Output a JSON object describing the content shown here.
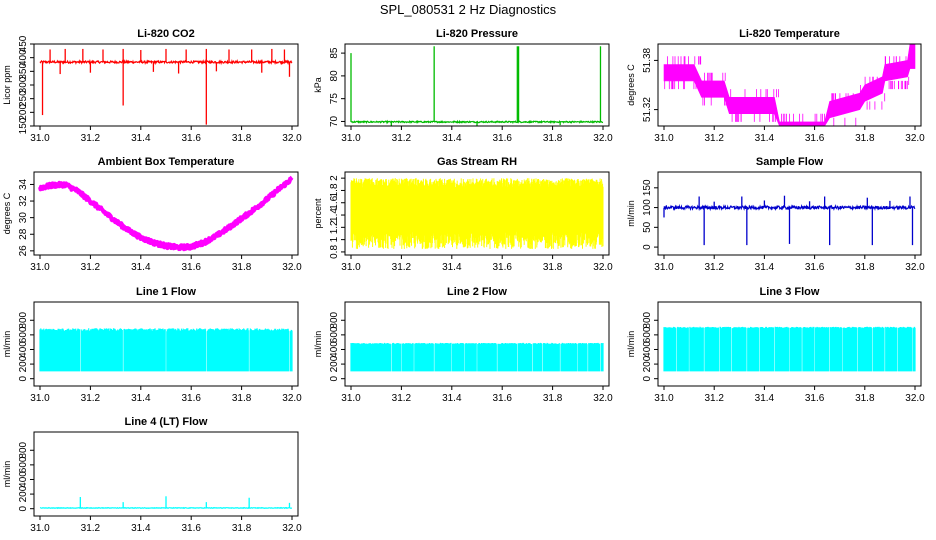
{
  "figure": {
    "title": "SPL_080531  2 Hz Diagnostics"
  },
  "chart_data": [
    {
      "type": "line",
      "title": "Li-820 CO2",
      "xlabel": "",
      "ylabel": "Licor ppm",
      "xlim": [
        31.0,
        32.0
      ],
      "ylim": [
        150,
        450
      ],
      "xticks": [
        31.0,
        31.2,
        31.4,
        31.6,
        31.8,
        32.0
      ],
      "yticks": [
        150,
        200,
        250,
        300,
        350,
        400,
        450
      ],
      "color": "#ff0000",
      "series": [
        {
          "baseline": 384,
          "noise": 4,
          "spikes": [
            {
              "x": 31.01,
              "y": 190
            },
            {
              "x": 31.33,
              "y": 225
            },
            {
              "x": 31.66,
              "y": 155
            },
            {
              "x": 31.99,
              "y": 330
            },
            {
              "x": 31.04,
              "y": 430
            },
            {
              "x": 31.1,
              "y": 432
            },
            {
              "x": 31.17,
              "y": 432
            },
            {
              "x": 31.25,
              "y": 430
            },
            {
              "x": 31.33,
              "y": 432
            },
            {
              "x": 31.4,
              "y": 428
            },
            {
              "x": 31.5,
              "y": 432
            },
            {
              "x": 31.58,
              "y": 430
            },
            {
              "x": 31.66,
              "y": 432
            },
            {
              "x": 31.75,
              "y": 430
            },
            {
              "x": 31.84,
              "y": 430
            },
            {
              "x": 31.92,
              "y": 432
            },
            {
              "x": 31.97,
              "y": 430
            },
            {
              "x": 31.08,
              "y": 340
            },
            {
              "x": 31.2,
              "y": 345
            },
            {
              "x": 31.45,
              "y": 348
            },
            {
              "x": 31.55,
              "y": 342
            },
            {
              "x": 31.7,
              "y": 350
            },
            {
              "x": 31.88,
              "y": 345
            }
          ]
        }
      ]
    },
    {
      "type": "line",
      "title": "Li-820 Pressure",
      "xlabel": "",
      "ylabel": "kPa",
      "xlim": [
        31.0,
        32.0
      ],
      "ylim": [
        69,
        87
      ],
      "xticks": [
        31.0,
        31.2,
        31.4,
        31.6,
        31.8,
        32.0
      ],
      "yticks": [
        70,
        75,
        80,
        85
      ],
      "color": "#00bb00",
      "series": [
        {
          "baseline": 69.9,
          "noise": 0.15,
          "spikes": [
            {
              "x": 31.0,
              "y": 85
            },
            {
              "x": 31.33,
              "y": 86.5
            },
            {
              "x": 31.66,
              "y": 86.5
            },
            {
              "x": 31.665,
              "y": 86.5
            },
            {
              "x": 31.99,
              "y": 86.5
            },
            {
              "x": 31.16,
              "y": 69.0
            },
            {
              "x": 31.5,
              "y": 69.0
            },
            {
              "x": 31.83,
              "y": 69.2
            }
          ]
        }
      ]
    },
    {
      "type": "line",
      "title": "Li-820 Temperature",
      "xlabel": "",
      "ylabel": "degrees C",
      "xlim": [
        31.0,
        32.0
      ],
      "ylim": [
        51.3,
        51.4
      ],
      "xticks": [
        31.0,
        31.2,
        31.4,
        31.6,
        31.8,
        32.0
      ],
      "yticks": [
        51.32,
        51.38
      ],
      "color": "#ff00ff",
      "series": [
        {
          "band_points": [
            {
              "x": 31.0,
              "lo": 51.355,
              "hi": 51.375
            },
            {
              "x": 31.12,
              "lo": 51.355,
              "hi": 51.375
            },
            {
              "x": 31.15,
              "lo": 51.335,
              "hi": 51.355
            },
            {
              "x": 31.24,
              "lo": 51.335,
              "hi": 51.355
            },
            {
              "x": 31.26,
              "lo": 51.315,
              "hi": 51.335
            },
            {
              "x": 31.44,
              "lo": 51.315,
              "hi": 51.335
            },
            {
              "x": 31.46,
              "lo": 51.3,
              "hi": 51.305
            },
            {
              "x": 31.64,
              "lo": 51.3,
              "hi": 51.305
            },
            {
              "x": 31.66,
              "lo": 51.31,
              "hi": 51.33
            },
            {
              "x": 31.78,
              "lo": 51.32,
              "hi": 51.34
            },
            {
              "x": 31.8,
              "lo": 51.33,
              "hi": 51.35
            },
            {
              "x": 31.87,
              "lo": 51.34,
              "hi": 51.36
            },
            {
              "x": 31.88,
              "lo": 51.355,
              "hi": 51.375
            },
            {
              "x": 31.97,
              "lo": 51.36,
              "hi": 51.38
            },
            {
              "x": 31.98,
              "lo": 51.37,
              "hi": 51.4
            },
            {
              "x": 32.0,
              "lo": 51.37,
              "hi": 51.4
            }
          ]
        }
      ]
    },
    {
      "type": "line",
      "title": "Ambient Box Temperature",
      "xlabel": "",
      "ylabel": "degrees C",
      "xlim": [
        31.0,
        32.0
      ],
      "ylim": [
        25.5,
        35.5
      ],
      "xticks": [
        31.0,
        31.2,
        31.4,
        31.6,
        31.8,
        32.0
      ],
      "yticks": [
        26,
        28,
        30,
        32,
        34
      ],
      "color": "#ff00ff",
      "series": [
        {
          "thickness": 0.5,
          "points": [
            {
              "x": 31.0,
              "y": 33.6
            },
            {
              "x": 31.05,
              "y": 33.9
            },
            {
              "x": 31.1,
              "y": 34.0
            },
            {
              "x": 31.15,
              "y": 33.2
            },
            {
              "x": 31.2,
              "y": 32.0
            },
            {
              "x": 31.25,
              "y": 30.8
            },
            {
              "x": 31.3,
              "y": 29.6
            },
            {
              "x": 31.35,
              "y": 28.5
            },
            {
              "x": 31.4,
              "y": 27.6
            },
            {
              "x": 31.45,
              "y": 27.0
            },
            {
              "x": 31.5,
              "y": 26.6
            },
            {
              "x": 31.55,
              "y": 26.4
            },
            {
              "x": 31.6,
              "y": 26.5
            },
            {
              "x": 31.65,
              "y": 27.0
            },
            {
              "x": 31.7,
              "y": 27.8
            },
            {
              "x": 31.75,
              "y": 28.8
            },
            {
              "x": 31.8,
              "y": 29.9
            },
            {
              "x": 31.85,
              "y": 31.0
            },
            {
              "x": 31.9,
              "y": 32.2
            },
            {
              "x": 31.95,
              "y": 33.5
            },
            {
              "x": 32.0,
              "y": 34.7
            }
          ]
        }
      ]
    },
    {
      "type": "line",
      "title": "Gas Stream RH",
      "xlabel": "",
      "ylabel": "percent",
      "xlim": [
        31.0,
        32.0
      ],
      "ylim": [
        0.75,
        2.1
      ],
      "xticks": [
        31.0,
        31.2,
        31.4,
        31.6,
        31.8,
        32.0
      ],
      "yticks": [
        0.8,
        1.0,
        1.2,
        1.4,
        1.6,
        1.8,
        2.0
      ],
      "color": "#ffff00",
      "series": [
        {
          "band_lo": 1.05,
          "band_hi": 2.0,
          "band_min": 0.85,
          "band_max": 2.05
        }
      ]
    },
    {
      "type": "line",
      "title": "Sample Flow",
      "xlabel": "",
      "ylabel": "ml/min",
      "xlim": [
        31.0,
        32.0
      ],
      "ylim": [
        -20,
        190
      ],
      "xticks": [
        31.0,
        31.2,
        31.4,
        31.6,
        31.8,
        32.0
      ],
      "yticks": [
        0,
        50,
        100,
        150
      ],
      "color": "#0000cc",
      "series": [
        {
          "baseline": 100,
          "noise": 4,
          "spikes": [
            {
              "x": 31.0,
              "y": 75
            },
            {
              "x": 31.16,
              "y": 5
            },
            {
              "x": 31.33,
              "y": 5
            },
            {
              "x": 31.5,
              "y": 8
            },
            {
              "x": 31.66,
              "y": 5
            },
            {
              "x": 31.83,
              "y": 5
            },
            {
              "x": 31.99,
              "y": 5
            },
            {
              "x": 31.14,
              "y": 128
            },
            {
              "x": 31.31,
              "y": 128
            },
            {
              "x": 31.48,
              "y": 130
            },
            {
              "x": 31.64,
              "y": 128
            },
            {
              "x": 31.81,
              "y": 125
            },
            {
              "x": 31.98,
              "y": 128
            },
            {
              "x": 31.2,
              "y": 115
            },
            {
              "x": 31.4,
              "y": 118
            },
            {
              "x": 31.58,
              "y": 116
            },
            {
              "x": 31.9,
              "y": 117
            }
          ]
        }
      ]
    },
    {
      "type": "line",
      "title": "Line 1 Flow",
      "xlabel": "",
      "ylabel": "ml/min",
      "xlim": [
        31.0,
        32.0
      ],
      "ylim": [
        -100,
        1050
      ],
      "xticks": [
        31.0,
        31.2,
        31.4,
        31.6,
        31.8,
        32.0
      ],
      "yticks": [
        0,
        200,
        400,
        600,
        800
      ],
      "color": "#00ffff",
      "series": [
        {
          "band_lo": 100,
          "band_hi": 670,
          "band_hi_peak": 690,
          "gaps": [
            31.16,
            31.33,
            31.5,
            31.66,
            31.83,
            31.99
          ]
        }
      ]
    },
    {
      "type": "line",
      "title": "Line 2 Flow",
      "xlabel": "",
      "ylabel": "ml/min",
      "xlim": [
        31.0,
        32.0
      ],
      "ylim": [
        -100,
        1050
      ],
      "xticks": [
        31.0,
        31.2,
        31.4,
        31.6,
        31.8,
        32.0
      ],
      "yticks": [
        0,
        200,
        400,
        600,
        800
      ],
      "color": "#00ffff",
      "series": [
        {
          "band_lo": 100,
          "band_hi": 480,
          "band_hi_peak": 490,
          "gaps": [
            31.16,
            31.2,
            31.25,
            31.33,
            31.4,
            31.45,
            31.5,
            31.58,
            31.66,
            31.72,
            31.76,
            31.83,
            31.9,
            31.94,
            31.99
          ]
        }
      ]
    },
    {
      "type": "line",
      "title": "Line 3 Flow",
      "xlabel": "",
      "ylabel": "ml/min",
      "xlim": [
        31.0,
        32.0
      ],
      "ylim": [
        -100,
        1050
      ],
      "xticks": [
        31.0,
        31.2,
        31.4,
        31.6,
        31.8,
        32.0
      ],
      "yticks": [
        0,
        200,
        400,
        600,
        800
      ],
      "color": "#00ffff",
      "series": [
        {
          "band_lo": 100,
          "band_hi": 700,
          "band_hi_peak": 710,
          "gaps": [
            31.05,
            31.1,
            31.16,
            31.22,
            31.27,
            31.33,
            31.38,
            31.44,
            31.5,
            31.55,
            31.6,
            31.66,
            31.71,
            31.77,
            31.83,
            31.88,
            31.93,
            31.99
          ]
        }
      ]
    },
    {
      "type": "line",
      "title": "Line 4 (LT) Flow",
      "xlabel": "",
      "ylabel": "ml/min",
      "xlim": [
        31.0,
        32.0
      ],
      "ylim": [
        -100,
        1050
      ],
      "xticks": [
        31.0,
        31.2,
        31.4,
        31.6,
        31.8,
        32.0
      ],
      "yticks": [
        0,
        200,
        400,
        600,
        800
      ],
      "color": "#00ffff",
      "series": [
        {
          "baseline": 10,
          "noise": 4,
          "spikes": [
            {
              "x": 31.16,
              "y": 160
            },
            {
              "x": 31.33,
              "y": 90
            },
            {
              "x": 31.5,
              "y": 170
            },
            {
              "x": 31.66,
              "y": 90
            },
            {
              "x": 31.83,
              "y": 150
            },
            {
              "x": 31.99,
              "y": 80
            }
          ]
        }
      ]
    }
  ]
}
